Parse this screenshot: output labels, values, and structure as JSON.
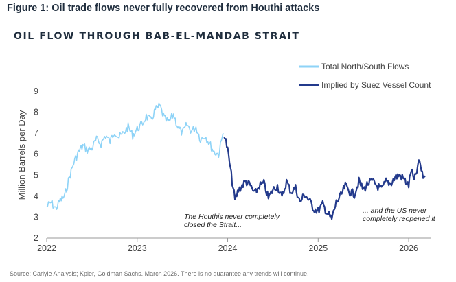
{
  "figure_title": "Figure 1: Oil trade flows never fully recovered from Houthi attacks",
  "source_note": "Source: Carlyle Analysis; Kpler, Goldman Sachs. March 2026. There is no guarantee any trends will continue.",
  "chart_data": {
    "type": "line",
    "title": "OIL FLOW THROUGH BAB-EL-MANDAB STRAIT",
    "xlabel": "",
    "ylabel": "Million Barrels per Day",
    "xlim": [
      2022.0,
      2026.25
    ],
    "ylim": [
      2,
      9
    ],
    "x_ticks": [
      "2022",
      "2023",
      "2024",
      "2025",
      "2026"
    ],
    "y_ticks": [
      "2",
      "3",
      "4",
      "5",
      "6",
      "7",
      "8",
      "9"
    ],
    "grid": false,
    "legend_position": "top-right",
    "series": [
      {
        "name": "Total North/South Flows",
        "color": "#8ed3f7",
        "x": [
          2022.0,
          2022.05,
          2022.1,
          2022.15,
          2022.2,
          2022.25,
          2022.3,
          2022.35,
          2022.4,
          2022.45,
          2022.5,
          2022.55,
          2022.6,
          2022.65,
          2022.7,
          2022.75,
          2022.8,
          2022.85,
          2022.9,
          2022.95,
          2023.0,
          2023.05,
          2023.1,
          2023.15,
          2023.2,
          2023.25,
          2023.3,
          2023.35,
          2023.4,
          2023.45,
          2023.5,
          2023.55,
          2023.6,
          2023.65,
          2023.7,
          2023.75,
          2023.8,
          2023.85,
          2023.9,
          2023.95
        ],
        "values": [
          3.5,
          3.7,
          3.4,
          3.8,
          4.0,
          4.9,
          5.6,
          6.1,
          6.4,
          6.2,
          6.3,
          6.7,
          6.5,
          6.9,
          6.6,
          7.1,
          6.8,
          7.0,
          7.3,
          6.9,
          7.2,
          7.4,
          7.8,
          7.6,
          8.1,
          8.3,
          7.7,
          7.5,
          7.9,
          7.3,
          7.0,
          7.4,
          7.1,
          7.3,
          6.7,
          6.9,
          6.5,
          6.1,
          6.0,
          7.0
        ]
      },
      {
        "name": "Implied by Suez Vessel Count",
        "color": "#233a8c",
        "x": [
          2023.96,
          2024.0,
          2024.04,
          2024.08,
          2024.12,
          2024.16,
          2024.2,
          2024.25,
          2024.3,
          2024.35,
          2024.4,
          2024.45,
          2024.5,
          2024.55,
          2024.6,
          2024.65,
          2024.7,
          2024.75,
          2024.8,
          2024.85,
          2024.9,
          2024.95,
          2025.0,
          2025.05,
          2025.1,
          2025.15,
          2025.2,
          2025.25,
          2025.3,
          2025.35,
          2025.4,
          2025.45,
          2025.5,
          2025.55,
          2025.6,
          2025.65,
          2025.7,
          2025.75,
          2025.8,
          2025.85,
          2025.9,
          2025.95,
          2026.0,
          2026.03,
          2026.06,
          2026.09,
          2026.12,
          2026.15,
          2026.18
        ],
        "values": [
          7.0,
          6.2,
          5.0,
          3.8,
          4.3,
          4.5,
          4.7,
          4.5,
          4.1,
          4.5,
          4.6,
          3.9,
          4.3,
          4.5,
          3.9,
          4.7,
          4.2,
          4.4,
          3.7,
          4.1,
          3.8,
          3.4,
          3.3,
          3.6,
          3.2,
          2.9,
          3.7,
          4.0,
          4.5,
          4.2,
          4.1,
          4.7,
          4.3,
          4.6,
          4.7,
          4.5,
          4.3,
          4.7,
          4.6,
          4.9,
          5.0,
          4.8,
          4.5,
          5.3,
          4.7,
          5.2,
          5.7,
          5.0,
          4.9
        ]
      }
    ],
    "annotations": [
      {
        "lines": [
          "The Houthis never completely",
          "closed the Strait..."
        ],
        "x": 2024.45,
        "y": 3.0
      },
      {
        "lines": [
          "... and the US never",
          "completely reopened it"
        ],
        "x": 2025.7,
        "y": 3.0
      }
    ]
  }
}
